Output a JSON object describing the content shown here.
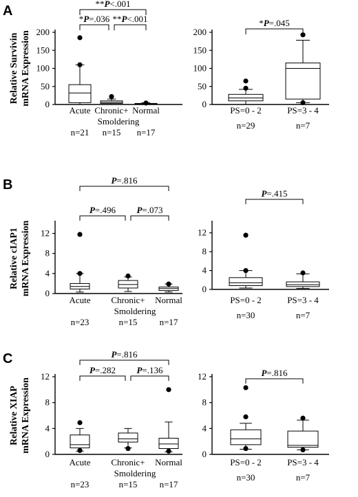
{
  "chart_data": [
    {
      "panel": "A",
      "type": "boxplot",
      "ylabel": "Relative Survivin mRNA Expression",
      "ylim": [
        0,
        200
      ],
      "yticks": [
        0,
        50,
        100,
        150,
        200
      ],
      "groups": [
        {
          "label": "Acute",
          "n": "n=21",
          "q1": 5,
          "median": 32,
          "q3": 55,
          "whisker_low": 0,
          "whisker_high": 110,
          "outliers": [
            185,
            110
          ]
        },
        {
          "label": "Chronic+",
          "label2": "Smoldering",
          "n": "n=15",
          "q1": 3,
          "median": 6,
          "q3": 10,
          "whisker_low": 0,
          "whisker_high": 15,
          "outliers": [
            22
          ]
        },
        {
          "label": "Normal",
          "n": "n=17",
          "q1": 0.5,
          "median": 1.5,
          "q3": 3,
          "whisker_low": 0,
          "whisker_high": 5,
          "outliers": [
            4
          ]
        }
      ],
      "comparisons": [
        {
          "text": "*P=.036",
          "from": 0,
          "to": 1
        },
        {
          "text": "**P<.001",
          "from": 1,
          "to": 2
        },
        {
          "text": "**P<.001",
          "from": 0,
          "to": 2
        }
      ]
    },
    {
      "panel": "A",
      "type": "boxplot",
      "ylabel": "",
      "ylim": [
        0,
        200
      ],
      "yticks": [
        0,
        50,
        100,
        150,
        200
      ],
      "groups": [
        {
          "label": "PS=0 - 2",
          "n": "n=29",
          "q1": 10,
          "median": 18,
          "q3": 28,
          "whisker_low": 0,
          "whisker_high": 42,
          "outliers": [
            65,
            45
          ]
        },
        {
          "label": "PS=3 - 4",
          "n": "n=7",
          "q1": 15,
          "median": 100,
          "q3": 115,
          "whisker_low": 5,
          "whisker_high": 178,
          "outliers": [
            193,
            5
          ]
        }
      ],
      "comparisons": [
        {
          "text": "*P=.045",
          "from": 0,
          "to": 1
        }
      ]
    },
    {
      "panel": "B",
      "type": "boxplot",
      "ylabel": "Relative cIAP1 mRNA Expression",
      "ylim": [
        0,
        14
      ],
      "yticks": [
        0,
        4,
        8,
        12
      ],
      "groups": [
        {
          "label": "Acute",
          "n": "n=23",
          "q1": 0.9,
          "median": 1.4,
          "q3": 2.0,
          "whisker_low": 0.3,
          "whisker_high": 4.0,
          "outliers": [
            11.8,
            4.0
          ]
        },
        {
          "label": "Chronic+",
          "label2": "Smoldering",
          "n": "n=15",
          "q1": 1.1,
          "median": 1.8,
          "q3": 2.6,
          "whisker_low": 0.4,
          "whisker_high": 3.3,
          "outliers": [
            3.5
          ]
        },
        {
          "label": "Normal",
          "n": "n=17",
          "q1": 0.6,
          "median": 1.0,
          "q3": 1.3,
          "whisker_low": 0.3,
          "whisker_high": 1.9,
          "outliers": [
            1.9
          ]
        }
      ],
      "comparisons": [
        {
          "text": "P=.496",
          "from": 0,
          "to": 1
        },
        {
          "text": "P=.073",
          "from": 1,
          "to": 2
        },
        {
          "text": "P=.816",
          "from": 0,
          "to": 2
        }
      ]
    },
    {
      "panel": "B",
      "type": "boxplot",
      "ylabel": "",
      "ylim": [
        0,
        14
      ],
      "yticks": [
        0,
        4,
        8,
        12
      ],
      "groups": [
        {
          "label": "PS=0 - 2",
          "n": "n=30",
          "q1": 0.8,
          "median": 1.4,
          "q3": 2.5,
          "whisker_low": 0.3,
          "whisker_high": 4.0,
          "outliers": [
            11.5,
            4.0
          ]
        },
        {
          "label": "PS=3 - 4",
          "n": "n=7",
          "q1": 0.6,
          "median": 1.0,
          "q3": 1.6,
          "whisker_low": 0.2,
          "whisker_high": 3.3,
          "outliers": [
            3.5
          ]
        }
      ],
      "comparisons": [
        {
          "text": "P=.415",
          "from": 0,
          "to": 1
        }
      ]
    },
    {
      "panel": "C",
      "type": "boxplot",
      "ylabel": "Relative XIAP mRNA Expression",
      "ylim": [
        0,
        12
      ],
      "yticks": [
        0,
        4,
        8,
        12
      ],
      "groups": [
        {
          "label": "Acute",
          "n": "n=23",
          "q1": 1.0,
          "median": 1.5,
          "q3": 3.0,
          "whisker_low": 0.5,
          "whisker_high": 4.0,
          "outliers": [
            4.9,
            0.6
          ]
        },
        {
          "label": "Chronic+",
          "label2": "Smoldering",
          "n": "n=15",
          "q1": 1.9,
          "median": 2.4,
          "q3": 3.3,
          "whisker_low": 1.0,
          "whisker_high": 4.0,
          "outliers": [
            0.9
          ]
        },
        {
          "label": "Normal",
          "n": "n=17",
          "q1": 0.9,
          "median": 1.6,
          "q3": 2.5,
          "whisker_low": 0.4,
          "whisker_high": 5.0,
          "outliers": [
            10.0,
            0.5
          ]
        }
      ],
      "comparisons": [
        {
          "text": "P=.282",
          "from": 0,
          "to": 1
        },
        {
          "text": "P=.136",
          "from": 1,
          "to": 2
        },
        {
          "text": "P=.816",
          "from": 0,
          "to": 2
        }
      ]
    },
    {
      "panel": "C",
      "type": "boxplot",
      "ylabel": "",
      "ylim": [
        0,
        12
      ],
      "yticks": [
        0,
        4,
        8,
        12
      ],
      "groups": [
        {
          "label": "PS=0 - 2",
          "n": "n=30",
          "q1": 1.5,
          "median": 2.4,
          "q3": 3.8,
          "whisker_low": 0.8,
          "whisker_high": 4.8,
          "outliers": [
            10.3,
            5.8,
            0.9
          ]
        },
        {
          "label": "PS=3 - 4",
          "n": "n=7",
          "q1": 1.1,
          "median": 1.4,
          "q3": 3.6,
          "whisker_low": 0.7,
          "whisker_high": 5.3,
          "outliers": [
            5.6,
            0.7
          ]
        }
      ],
      "comparisons": [
        {
          "text": "P=.816",
          "from": 0,
          "to": 1
        }
      ]
    }
  ],
  "panel_labels": [
    "A",
    "B",
    "C"
  ]
}
